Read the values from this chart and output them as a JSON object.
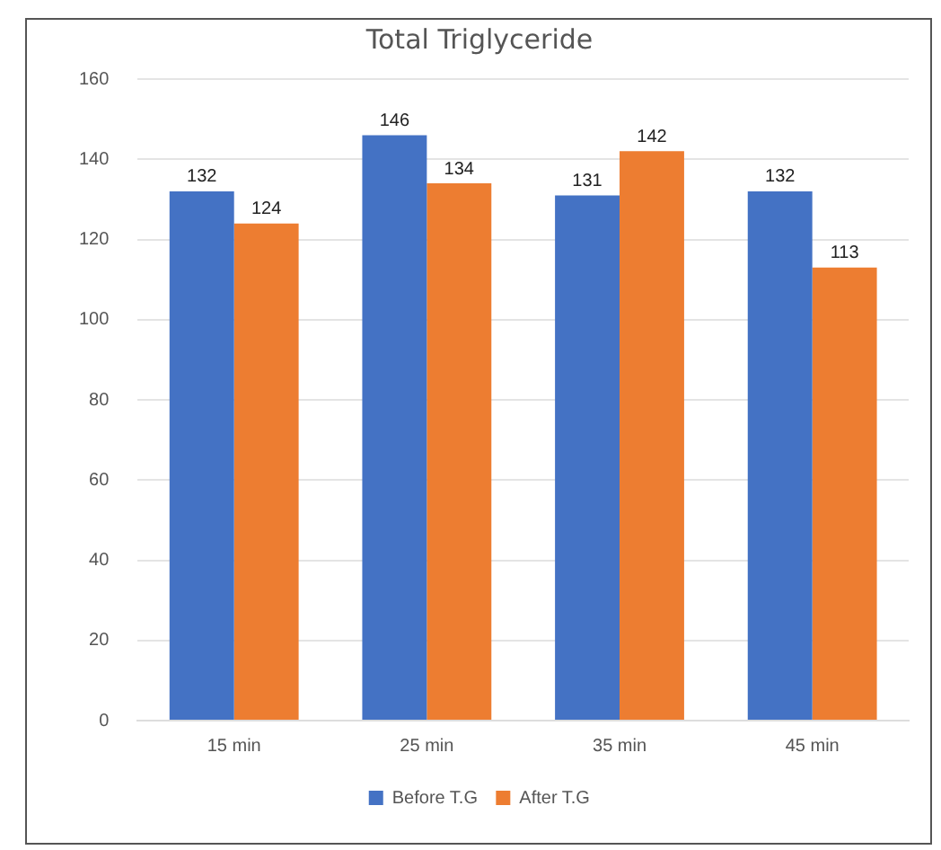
{
  "chart_data": {
    "type": "bar",
    "title": "Total Triglyceride",
    "categories": [
      "15 min",
      "25 min",
      "35 min",
      "45 min"
    ],
    "series": [
      {
        "name": "Before T.G",
        "color": "#4472c4",
        "values": [
          132,
          146,
          131,
          132
        ]
      },
      {
        "name": "After T.G",
        "color": "#ed7d31",
        "values": [
          124,
          134,
          142,
          113
        ]
      }
    ],
    "ylim": [
      0,
      160
    ],
    "yticks": [
      0,
      20,
      40,
      60,
      80,
      100,
      120,
      140,
      160
    ],
    "grid": "y",
    "legend": "bottom",
    "data_labels": true
  }
}
